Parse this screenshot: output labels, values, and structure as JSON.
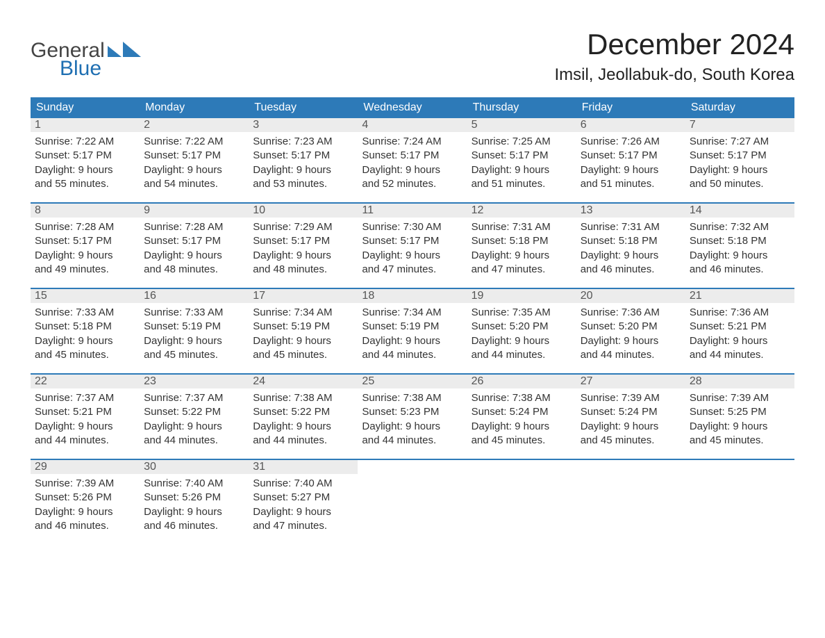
{
  "brand": {
    "line1": "General",
    "line2": "Blue"
  },
  "title": "December 2024",
  "location": "Imsil, Jeollabuk-do, South Korea",
  "colors": {
    "header_bg": "#2d7ab8",
    "header_text": "#ffffff",
    "week_border": "#2d7ab8",
    "daynum_bg": "#ececec",
    "body_bg": "#ffffff",
    "text": "#333333",
    "title": "#222222",
    "logo_gray": "#444444",
    "logo_blue": "#1f6fb2"
  },
  "fonts": {
    "title_size_pt": 32,
    "location_size_pt": 18,
    "weekday_size_pt": 12,
    "daynum_size_pt": 12,
    "body_size_pt": 11
  },
  "weekdays": [
    "Sunday",
    "Monday",
    "Tuesday",
    "Wednesday",
    "Thursday",
    "Friday",
    "Saturday"
  ],
  "weeks": [
    [
      {
        "n": "1",
        "sr": "Sunrise: 7:22 AM",
        "ss": "Sunset: 5:17 PM",
        "d1": "Daylight: 9 hours",
        "d2": "and 55 minutes."
      },
      {
        "n": "2",
        "sr": "Sunrise: 7:22 AM",
        "ss": "Sunset: 5:17 PM",
        "d1": "Daylight: 9 hours",
        "d2": "and 54 minutes."
      },
      {
        "n": "3",
        "sr": "Sunrise: 7:23 AM",
        "ss": "Sunset: 5:17 PM",
        "d1": "Daylight: 9 hours",
        "d2": "and 53 minutes."
      },
      {
        "n": "4",
        "sr": "Sunrise: 7:24 AM",
        "ss": "Sunset: 5:17 PM",
        "d1": "Daylight: 9 hours",
        "d2": "and 52 minutes."
      },
      {
        "n": "5",
        "sr": "Sunrise: 7:25 AM",
        "ss": "Sunset: 5:17 PM",
        "d1": "Daylight: 9 hours",
        "d2": "and 51 minutes."
      },
      {
        "n": "6",
        "sr": "Sunrise: 7:26 AM",
        "ss": "Sunset: 5:17 PM",
        "d1": "Daylight: 9 hours",
        "d2": "and 51 minutes."
      },
      {
        "n": "7",
        "sr": "Sunrise: 7:27 AM",
        "ss": "Sunset: 5:17 PM",
        "d1": "Daylight: 9 hours",
        "d2": "and 50 minutes."
      }
    ],
    [
      {
        "n": "8",
        "sr": "Sunrise: 7:28 AM",
        "ss": "Sunset: 5:17 PM",
        "d1": "Daylight: 9 hours",
        "d2": "and 49 minutes."
      },
      {
        "n": "9",
        "sr": "Sunrise: 7:28 AM",
        "ss": "Sunset: 5:17 PM",
        "d1": "Daylight: 9 hours",
        "d2": "and 48 minutes."
      },
      {
        "n": "10",
        "sr": "Sunrise: 7:29 AM",
        "ss": "Sunset: 5:17 PM",
        "d1": "Daylight: 9 hours",
        "d2": "and 48 minutes."
      },
      {
        "n": "11",
        "sr": "Sunrise: 7:30 AM",
        "ss": "Sunset: 5:17 PM",
        "d1": "Daylight: 9 hours",
        "d2": "and 47 minutes."
      },
      {
        "n": "12",
        "sr": "Sunrise: 7:31 AM",
        "ss": "Sunset: 5:18 PM",
        "d1": "Daylight: 9 hours",
        "d2": "and 47 minutes."
      },
      {
        "n": "13",
        "sr": "Sunrise: 7:31 AM",
        "ss": "Sunset: 5:18 PM",
        "d1": "Daylight: 9 hours",
        "d2": "and 46 minutes."
      },
      {
        "n": "14",
        "sr": "Sunrise: 7:32 AM",
        "ss": "Sunset: 5:18 PM",
        "d1": "Daylight: 9 hours",
        "d2": "and 46 minutes."
      }
    ],
    [
      {
        "n": "15",
        "sr": "Sunrise: 7:33 AM",
        "ss": "Sunset: 5:18 PM",
        "d1": "Daylight: 9 hours",
        "d2": "and 45 minutes."
      },
      {
        "n": "16",
        "sr": "Sunrise: 7:33 AM",
        "ss": "Sunset: 5:19 PM",
        "d1": "Daylight: 9 hours",
        "d2": "and 45 minutes."
      },
      {
        "n": "17",
        "sr": "Sunrise: 7:34 AM",
        "ss": "Sunset: 5:19 PM",
        "d1": "Daylight: 9 hours",
        "d2": "and 45 minutes."
      },
      {
        "n": "18",
        "sr": "Sunrise: 7:34 AM",
        "ss": "Sunset: 5:19 PM",
        "d1": "Daylight: 9 hours",
        "d2": "and 44 minutes."
      },
      {
        "n": "19",
        "sr": "Sunrise: 7:35 AM",
        "ss": "Sunset: 5:20 PM",
        "d1": "Daylight: 9 hours",
        "d2": "and 44 minutes."
      },
      {
        "n": "20",
        "sr": "Sunrise: 7:36 AM",
        "ss": "Sunset: 5:20 PM",
        "d1": "Daylight: 9 hours",
        "d2": "and 44 minutes."
      },
      {
        "n": "21",
        "sr": "Sunrise: 7:36 AM",
        "ss": "Sunset: 5:21 PM",
        "d1": "Daylight: 9 hours",
        "d2": "and 44 minutes."
      }
    ],
    [
      {
        "n": "22",
        "sr": "Sunrise: 7:37 AM",
        "ss": "Sunset: 5:21 PM",
        "d1": "Daylight: 9 hours",
        "d2": "and 44 minutes."
      },
      {
        "n": "23",
        "sr": "Sunrise: 7:37 AM",
        "ss": "Sunset: 5:22 PM",
        "d1": "Daylight: 9 hours",
        "d2": "and 44 minutes."
      },
      {
        "n": "24",
        "sr": "Sunrise: 7:38 AM",
        "ss": "Sunset: 5:22 PM",
        "d1": "Daylight: 9 hours",
        "d2": "and 44 minutes."
      },
      {
        "n": "25",
        "sr": "Sunrise: 7:38 AM",
        "ss": "Sunset: 5:23 PM",
        "d1": "Daylight: 9 hours",
        "d2": "and 44 minutes."
      },
      {
        "n": "26",
        "sr": "Sunrise: 7:38 AM",
        "ss": "Sunset: 5:24 PM",
        "d1": "Daylight: 9 hours",
        "d2": "and 45 minutes."
      },
      {
        "n": "27",
        "sr": "Sunrise: 7:39 AM",
        "ss": "Sunset: 5:24 PM",
        "d1": "Daylight: 9 hours",
        "d2": "and 45 minutes."
      },
      {
        "n": "28",
        "sr": "Sunrise: 7:39 AM",
        "ss": "Sunset: 5:25 PM",
        "d1": "Daylight: 9 hours",
        "d2": "and 45 minutes."
      }
    ],
    [
      {
        "n": "29",
        "sr": "Sunrise: 7:39 AM",
        "ss": "Sunset: 5:26 PM",
        "d1": "Daylight: 9 hours",
        "d2": "and 46 minutes."
      },
      {
        "n": "30",
        "sr": "Sunrise: 7:40 AM",
        "ss": "Sunset: 5:26 PM",
        "d1": "Daylight: 9 hours",
        "d2": "and 46 minutes."
      },
      {
        "n": "31",
        "sr": "Sunrise: 7:40 AM",
        "ss": "Sunset: 5:27 PM",
        "d1": "Daylight: 9 hours",
        "d2": "and 47 minutes."
      },
      null,
      null,
      null,
      null
    ]
  ]
}
